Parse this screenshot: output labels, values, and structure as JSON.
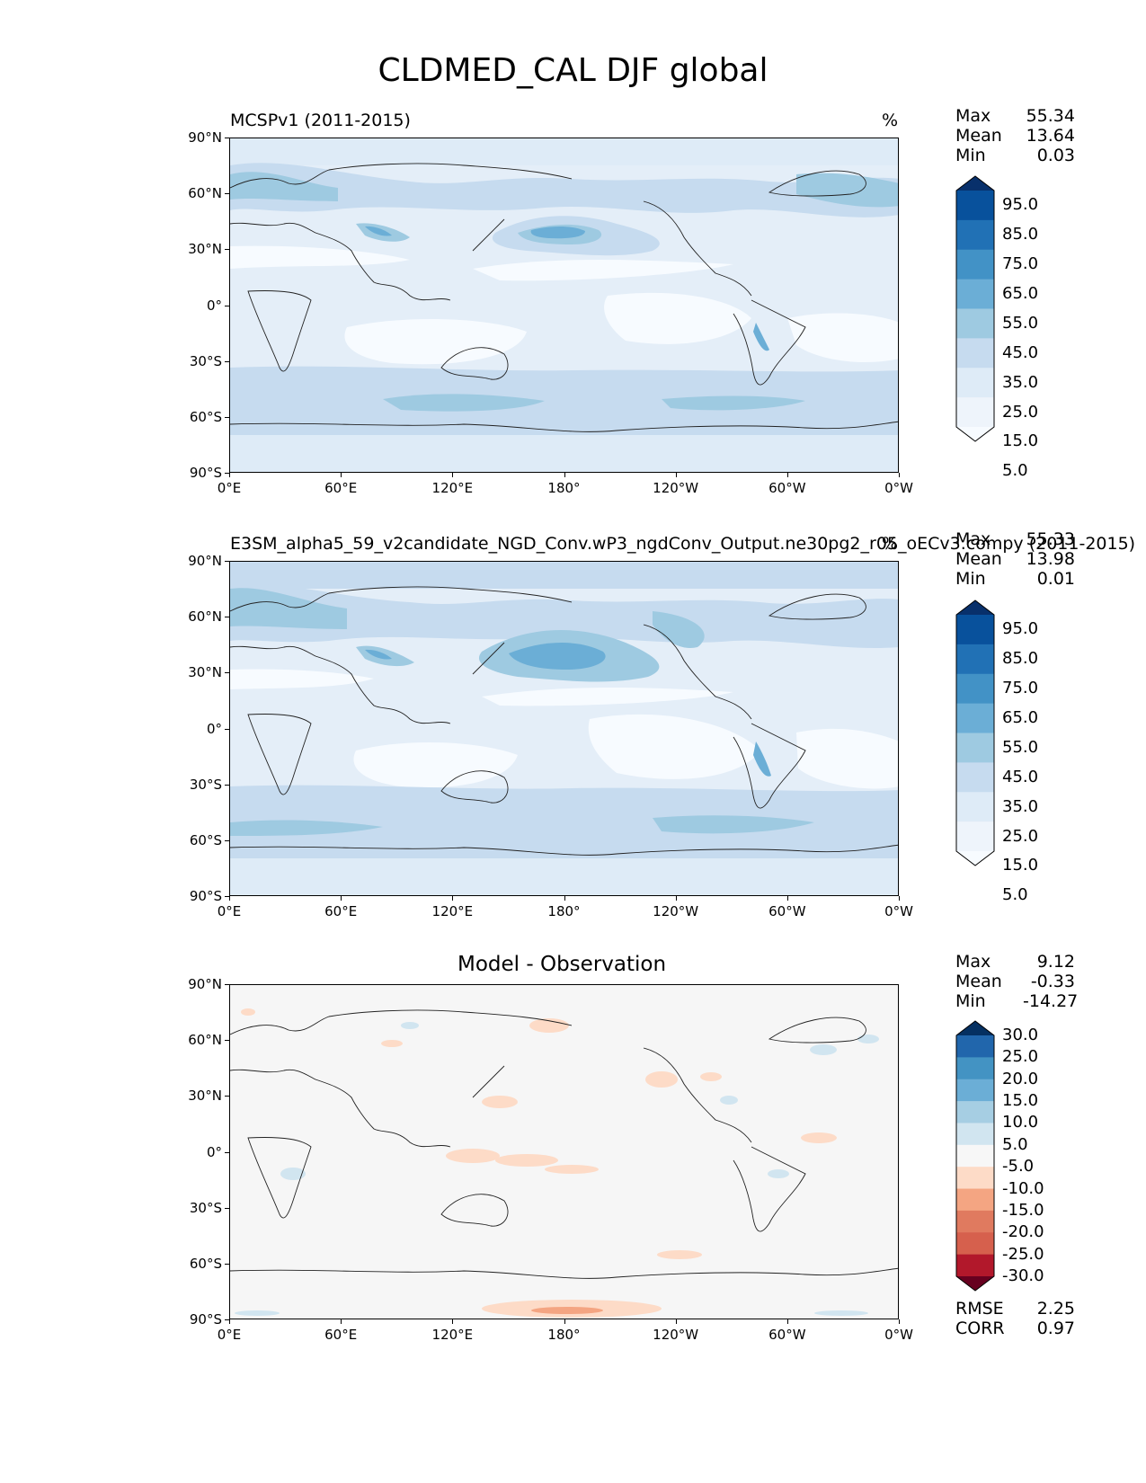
{
  "figure_title": "CLDMED_CAL DJF global",
  "panels": [
    {
      "id": "obs",
      "left_title": "MCSPv1 (2011-2015)",
      "right_title": "%",
      "stats": [
        {
          "label": "Max",
          "value": "55.34"
        },
        {
          "label": "Mean",
          "value": "13.64"
        },
        {
          "label": "Min",
          "value": "0.03"
        }
      ],
      "colorbar_labels": [
        "95.0",
        "85.0",
        "75.0",
        "65.0",
        "55.0",
        "45.0",
        "35.0",
        "25.0",
        "15.0",
        "5.0"
      ],
      "colorbar_colors": [
        "#08306b",
        "#08519c",
        "#2171b5",
        "#4292c6",
        "#6baed6",
        "#9ecae1",
        "#c6dbef",
        "#deebf7",
        "#eef4fb",
        "#f7fbff"
      ]
    },
    {
      "id": "model",
      "left_title": "E3SM_alpha5_59_v2candidate_NGD_Conv.wP3_ngdConv_Output.ne30pg2_r05_oECv3.compy (2011-2015)",
      "right_title": "%",
      "stats": [
        {
          "label": "Max",
          "value": "55.33"
        },
        {
          "label": "Mean",
          "value": "13.98"
        },
        {
          "label": "Min",
          "value": "0.01"
        }
      ],
      "colorbar_labels": [
        "95.0",
        "85.0",
        "75.0",
        "65.0",
        "55.0",
        "45.0",
        "35.0",
        "25.0",
        "15.0",
        "5.0"
      ],
      "colorbar_colors": [
        "#08306b",
        "#08519c",
        "#2171b5",
        "#4292c6",
        "#6baed6",
        "#9ecae1",
        "#c6dbef",
        "#deebf7",
        "#eef4fb",
        "#f7fbff"
      ]
    },
    {
      "id": "diff",
      "center_title": "Model - Observation",
      "stats": [
        {
          "label": "Max",
          "value": "9.12"
        },
        {
          "label": "Mean",
          "value": "-0.33"
        },
        {
          "label": "Min",
          "value": "-14.27"
        }
      ],
      "colorbar_labels": [
        "30.0",
        "25.0",
        "20.0",
        "15.0",
        "10.0",
        "5.0",
        "-5.0",
        "-10.0",
        "-15.0",
        "-20.0",
        "-25.0",
        "-30.0"
      ],
      "colorbar_colors": [
        "#053061",
        "#2166ac",
        "#4393c3",
        "#6baed6",
        "#a6cee3",
        "#d1e5f0",
        "#f7f7f7",
        "#fddbc7",
        "#f4a582",
        "#e07a5f",
        "#d6604d",
        "#b2182b",
        "#67001f"
      ],
      "bottom_stats": [
        {
          "label": "RMSE",
          "value": "2.25"
        },
        {
          "label": "CORR",
          "value": "0.97"
        }
      ]
    }
  ],
  "lat_ticks": [
    "90°N",
    "60°N",
    "30°N",
    "0°",
    "30°S",
    "60°S",
    "90°S"
  ],
  "lon_ticks": [
    "0°E",
    "60°E",
    "120°E",
    "180°",
    "120°W",
    "60°W",
    "0°W"
  ],
  "chart_data": [
    {
      "type": "heatmap",
      "title": "MCSPv1 (2011-2015)",
      "units": "%",
      "xlabel": "",
      "ylabel": "",
      "x_ticks": [
        "0°E",
        "60°E",
        "120°E",
        "180°",
        "120°W",
        "60°W",
        "0°W"
      ],
      "y_ticks": [
        "90°N",
        "60°N",
        "30°N",
        "0°",
        "30°S",
        "60°S",
        "90°S"
      ],
      "levels": [
        5,
        15,
        25,
        35,
        45,
        55,
        65,
        75,
        85,
        95
      ],
      "max": 55.34,
      "mean": 13.64,
      "min": 0.03
    },
    {
      "type": "heatmap",
      "title": "E3SM_alpha5_59_v2candidate_NGD_Conv.wP3_ngdConv_Output.ne30pg2_r05_oECv3.compy (2011-2015)",
      "units": "%",
      "xlabel": "",
      "ylabel": "",
      "x_ticks": [
        "0°E",
        "60°E",
        "120°E",
        "180°",
        "120°W",
        "60°W",
        "0°W"
      ],
      "y_ticks": [
        "90°N",
        "60°N",
        "30°N",
        "0°",
        "30°S",
        "60°S",
        "90°S"
      ],
      "levels": [
        5,
        15,
        25,
        35,
        45,
        55,
        65,
        75,
        85,
        95
      ],
      "max": 55.33,
      "mean": 13.98,
      "min": 0.01
    },
    {
      "type": "heatmap",
      "title": "Model - Observation",
      "xlabel": "",
      "ylabel": "",
      "x_ticks": [
        "0°E",
        "60°E",
        "120°E",
        "180°",
        "120°W",
        "60°W",
        "0°W"
      ],
      "y_ticks": [
        "90°N",
        "60°N",
        "30°N",
        "0°",
        "30°S",
        "60°S",
        "90°S"
      ],
      "levels": [
        -30,
        -25,
        -20,
        -15,
        -10,
        -5,
        5,
        10,
        15,
        20,
        25,
        30
      ],
      "max": 9.12,
      "mean": -0.33,
      "min": -14.27,
      "rmse": 2.25,
      "corr": 0.97
    }
  ]
}
